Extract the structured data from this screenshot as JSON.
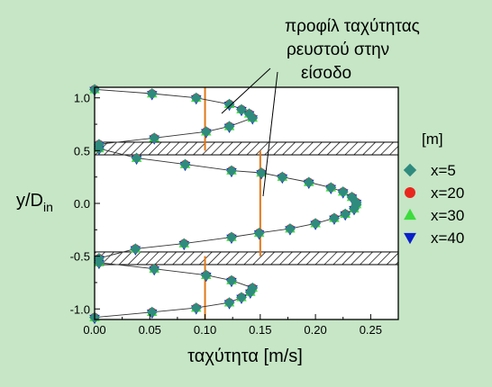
{
  "chart_data": {
    "type": "scatter",
    "title": "",
    "xlabel": "ταχύτητα [m/s]",
    "ylabel_main": "y/D",
    "ylabel_sub": "in",
    "xlim": [
      0.0,
      0.275
    ],
    "ylim": [
      -1.1,
      1.1
    ],
    "xticks": [
      "0.00",
      "0.05",
      "0.10",
      "0.15",
      "0.20",
      "0.25"
    ],
    "xtick_values": [
      0.0,
      0.05,
      0.1,
      0.15,
      0.2,
      0.25
    ],
    "yticks": [
      "1.0",
      "0.5",
      "0.0",
      "-0.5",
      "-1.0"
    ],
    "ytick_values": [
      1.0,
      0.5,
      0.0,
      -0.5,
      -1.0
    ],
    "legend_title": "[m]",
    "legend_position": "right",
    "series": [
      {
        "name": "x=5",
        "marker": "diamond",
        "color": "#2e8b7e"
      },
      {
        "name": "x=20",
        "marker": "circle",
        "color": "#e8271e"
      },
      {
        "name": "x=30",
        "marker": "triangle-up",
        "color": "#3cdc3c"
      },
      {
        "name": "x=40",
        "marker": "triangle-down",
        "color": "#0a20c8"
      }
    ],
    "profile_points": [
      [
        0.0,
        1.08
      ],
      [
        0.052,
        1.04
      ],
      [
        0.092,
        1.0
      ],
      [
        0.122,
        0.94
      ],
      [
        0.133,
        0.89
      ],
      [
        0.14,
        0.85
      ],
      [
        0.143,
        0.81
      ],
      [
        0.122,
        0.73
      ],
      [
        0.101,
        0.68
      ],
      [
        0.054,
        0.62
      ],
      [
        0.004,
        0.56
      ],
      [
        0.004,
        0.52
      ],
      [
        0.038,
        0.43
      ],
      [
        0.082,
        0.37
      ],
      [
        0.124,
        0.31
      ],
      [
        0.151,
        0.29
      ],
      [
        0.17,
        0.25
      ],
      [
        0.194,
        0.2
      ],
      [
        0.214,
        0.15
      ],
      [
        0.225,
        0.11
      ],
      [
        0.233,
        0.06
      ],
      [
        0.237,
        0.01
      ],
      [
        0.237,
        -0.01
      ],
      [
        0.235,
        -0.05
      ],
      [
        0.227,
        -0.1
      ],
      [
        0.217,
        -0.14
      ],
      [
        0.2,
        -0.19
      ],
      [
        0.177,
        -0.24
      ],
      [
        0.149,
        -0.28
      ],
      [
        0.124,
        -0.32
      ],
      [
        0.081,
        -0.38
      ],
      [
        0.037,
        -0.43
      ],
      [
        0.004,
        -0.52
      ],
      [
        0.004,
        -0.56
      ],
      [
        0.054,
        -0.62
      ],
      [
        0.101,
        -0.68
      ],
      [
        0.124,
        -0.73
      ],
      [
        0.143,
        -0.8
      ],
      [
        0.141,
        -0.84
      ],
      [
        0.133,
        -0.89
      ],
      [
        0.122,
        -0.94
      ],
      [
        0.092,
        -0.99
      ],
      [
        0.052,
        -1.03
      ],
      [
        0.0,
        -1.08
      ]
    ],
    "inlet_profile_lines": [
      {
        "x": 0.1,
        "y_range": [
          0.5,
          1.1
        ]
      },
      {
        "x": 0.15,
        "y_range": [
          -0.5,
          0.5
        ]
      },
      {
        "x": 0.1,
        "y_range": [
          -1.1,
          -0.5
        ]
      }
    ],
    "inlet_line_color": "#e07818",
    "hatched_bands": [
      [
        0.46,
        0.58
      ],
      [
        -0.58,
        -0.46
      ]
    ],
    "annotation": [
      "προφίλ ταχύτητας",
      "ρευστού στην",
      "είσοδο"
    ],
    "grid": false
  }
}
